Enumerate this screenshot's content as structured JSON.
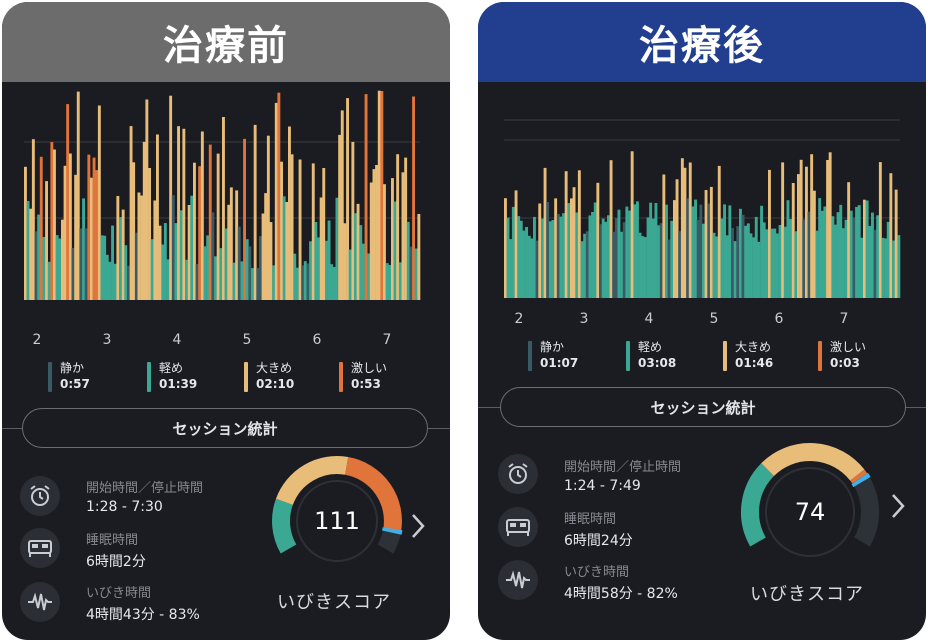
{
  "panels": {
    "before": {
      "header": "治療前",
      "hours": [
        "2",
        "3",
        "4",
        "5",
        "6",
        "7"
      ],
      "legend": [
        {
          "name": "静か",
          "time": "0:57",
          "color": "#3a5a66"
        },
        {
          "name": "軽め",
          "time": "01:39",
          "color": "#3aa892"
        },
        {
          "name": "大きめ",
          "time": "02:10",
          "color": "#e7bd79"
        },
        {
          "name": "激しい",
          "time": "0:53",
          "color": "#e0743a"
        }
      ],
      "session_label": "セッション統計",
      "stats": {
        "start_stop_label": "開始時間／停止時間",
        "start_stop_value": "1:28 - 7:30",
        "sleep_label": "睡眠時間",
        "sleep_value": "6時間2分",
        "snore_label": "いびき時間",
        "snore_value": "4時間43分 - 83%"
      },
      "score": "111",
      "score_title": "いびきスコア"
    },
    "after": {
      "header": "治療後",
      "hours": [
        "2",
        "3",
        "4",
        "5",
        "6",
        "7"
      ],
      "legend": [
        {
          "name": "静か",
          "time": "01:07",
          "color": "#3a5a66"
        },
        {
          "name": "軽め",
          "time": "03:08",
          "color": "#3aa892"
        },
        {
          "name": "大きめ",
          "time": "01:46",
          "color": "#e7bd79"
        },
        {
          "name": "激しい",
          "time": "0:03",
          "color": "#e0743a"
        }
      ],
      "session_label": "セッション統計",
      "stats": {
        "start_stop_label": "開始時間／停止時間",
        "start_stop_value": "1:24 - 7:49",
        "sleep_label": "睡眠時間",
        "sleep_value": "6時間24分",
        "snore_label": "いびき時間",
        "snore_value": "4時間58分 - 82%"
      },
      "score": "74",
      "score_title": "いびきスコア"
    }
  },
  "colors": {
    "quiet": "#3a5a66",
    "light": "#3aa892",
    "loud": "#e7bd79",
    "intense": "#e0743a",
    "marker": "#3fb0e8",
    "before_header": "#6c6c6c",
    "after_header": "#213f8e"
  },
  "icons": {
    "start_stop": "alarm-clock-icon",
    "sleep": "bed-icon",
    "snore": "waveform-icon",
    "next": "chevron-right-icon"
  }
}
